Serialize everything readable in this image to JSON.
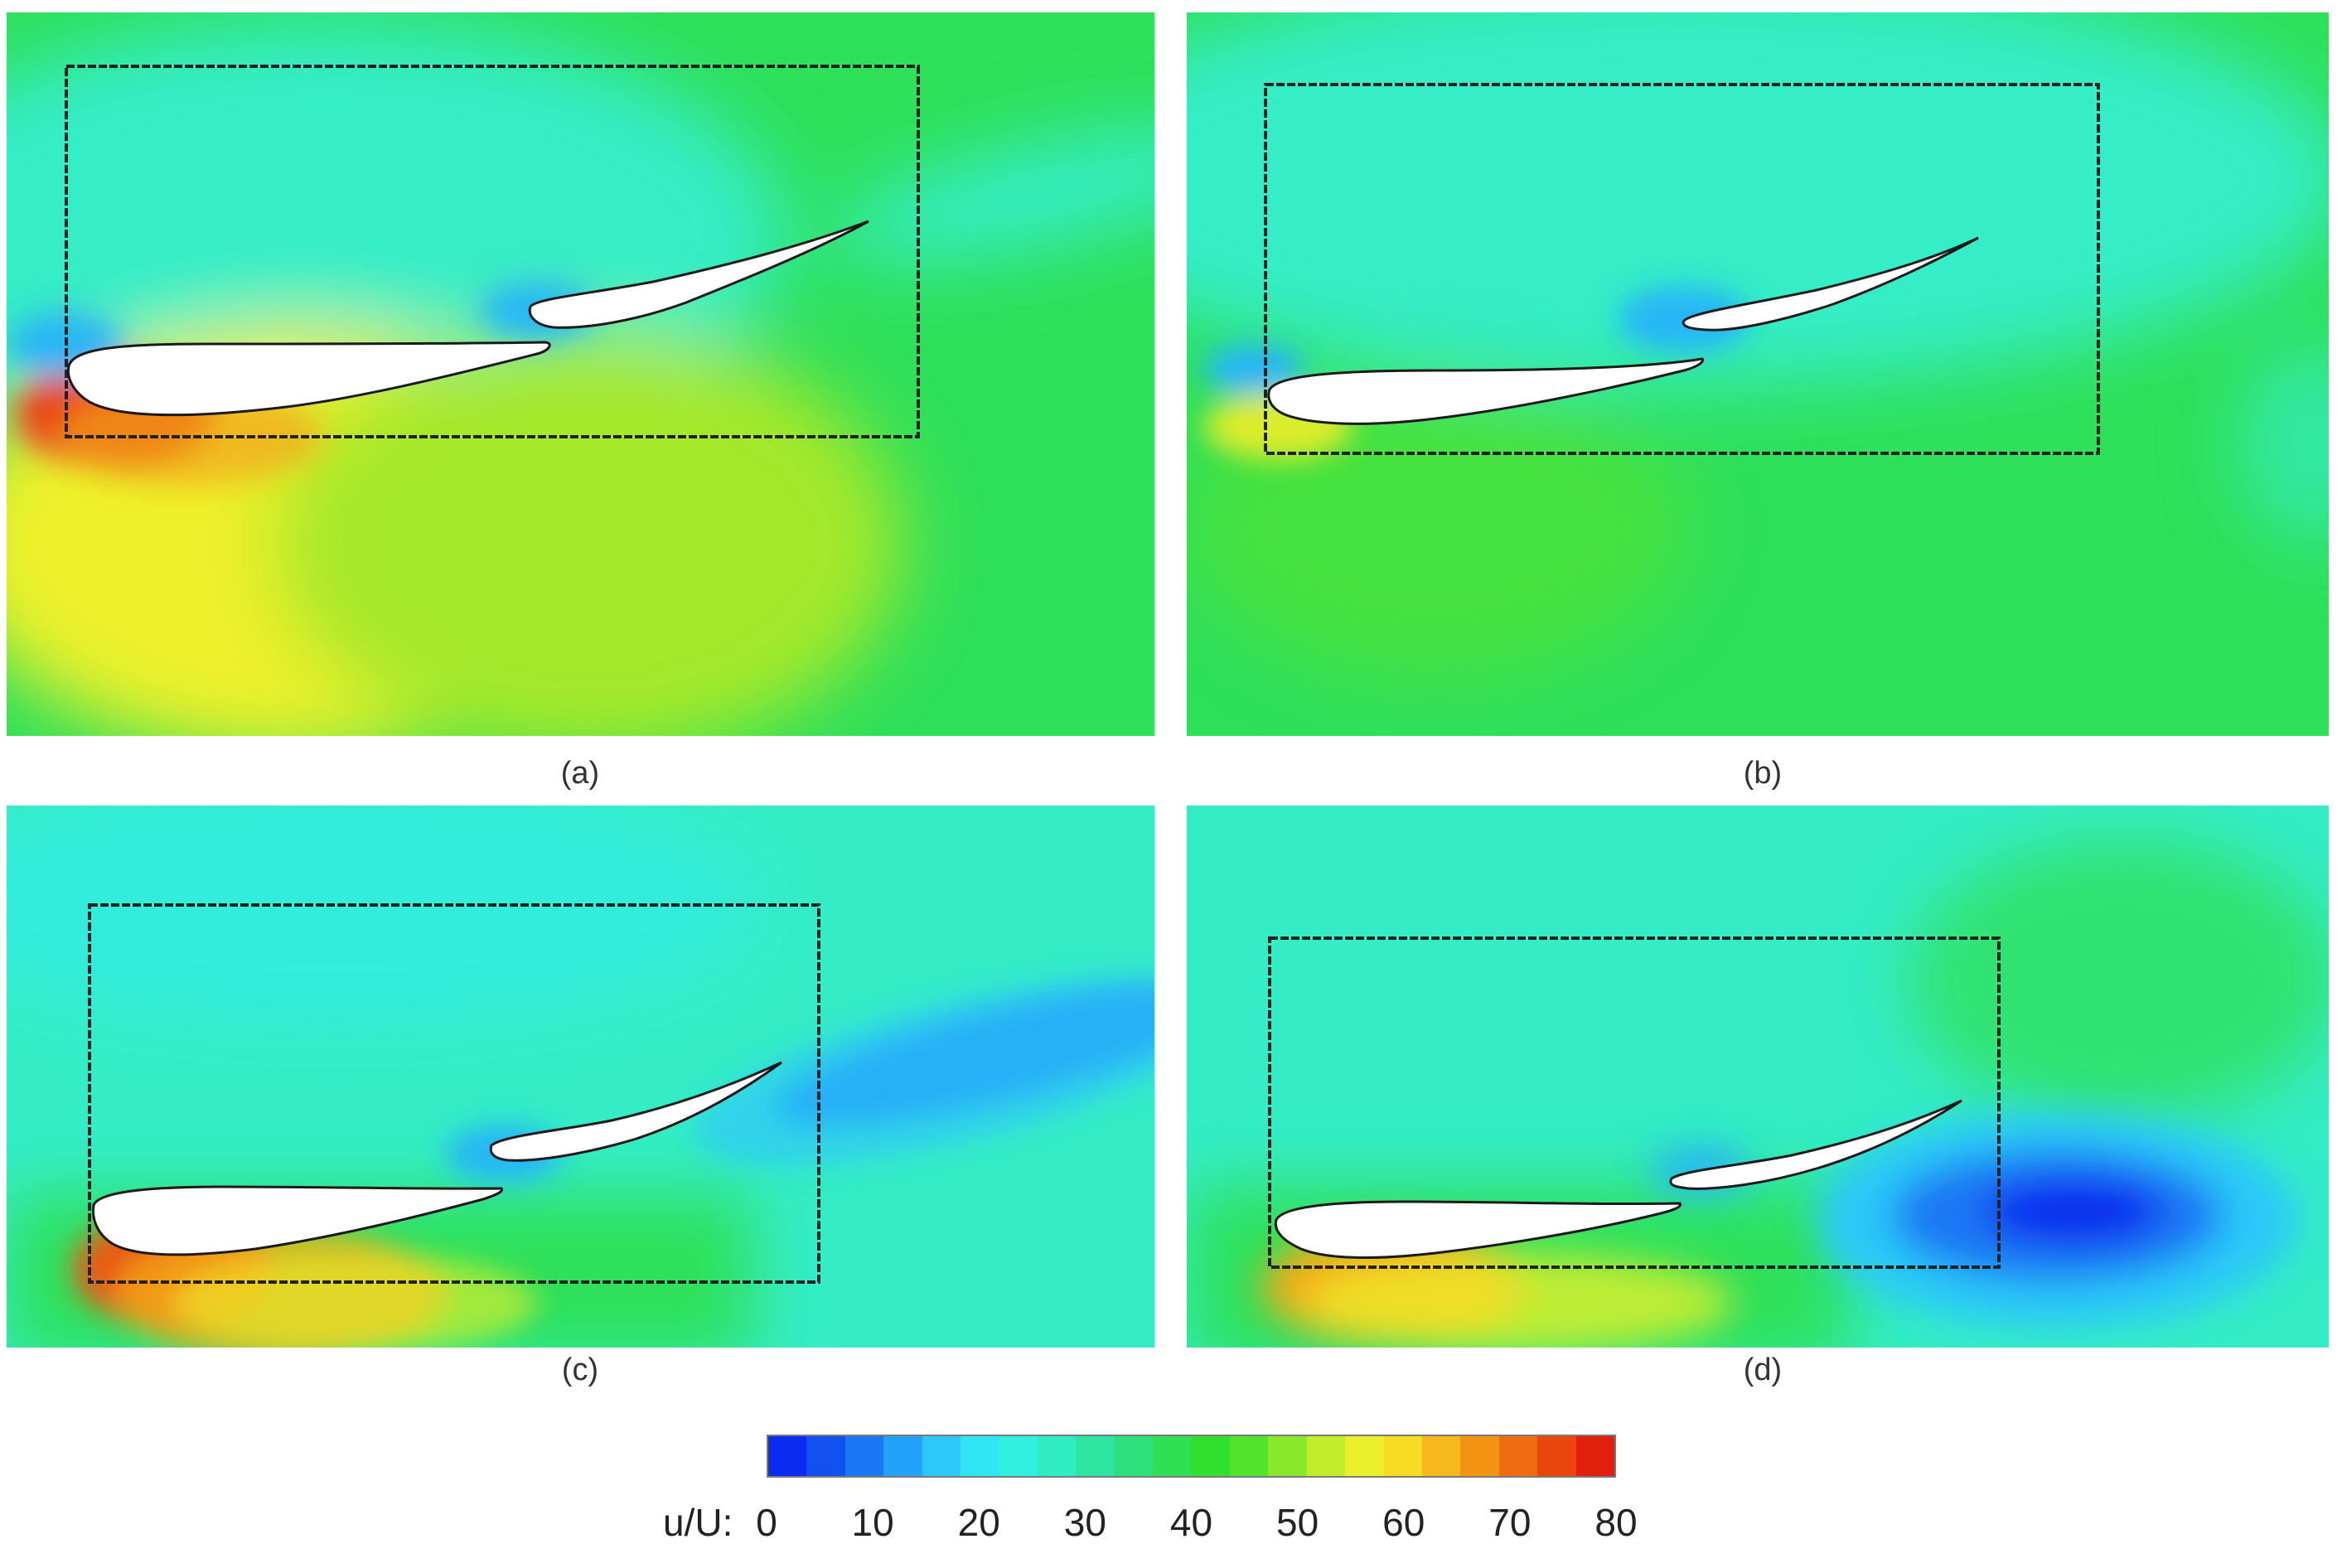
{
  "figure": {
    "panels": [
      {
        "id": "a",
        "caption": "(a)"
      },
      {
        "id": "b",
        "caption": "(b)"
      },
      {
        "id": "c",
        "caption": "(c)"
      },
      {
        "id": "d",
        "caption": "(d)"
      }
    ],
    "colorbar": {
      "label": "u/U:",
      "min": 0,
      "max": 80,
      "ticks": [
        "0",
        "10",
        "20",
        "30",
        "40",
        "50",
        "60",
        "70",
        "80"
      ],
      "colors": [
        "#0a2cf0",
        "#1250f0",
        "#1a78f4",
        "#22a2f8",
        "#2cc8f8",
        "#30e6f4",
        "#32f0e0",
        "#30ecc2",
        "#2ee6a2",
        "#2ee07c",
        "#2ee052",
        "#30e02c",
        "#50e42a",
        "#8ae82a",
        "#c0ec2a",
        "#ecf02a",
        "#f6dc22",
        "#f6b81a",
        "#f49414",
        "#f06c10",
        "#ea460c",
        "#e0200a"
      ]
    },
    "colors": {
      "free_stream_green": "#2fe05a",
      "cyan_region": "#34edc6",
      "low_speed_blue": "#1450f0",
      "high_speed_red": "#e83010",
      "yellow_region": "#f0f02a",
      "airfoil_fill": "#ffffff",
      "frame_line": "#222222"
    }
  }
}
